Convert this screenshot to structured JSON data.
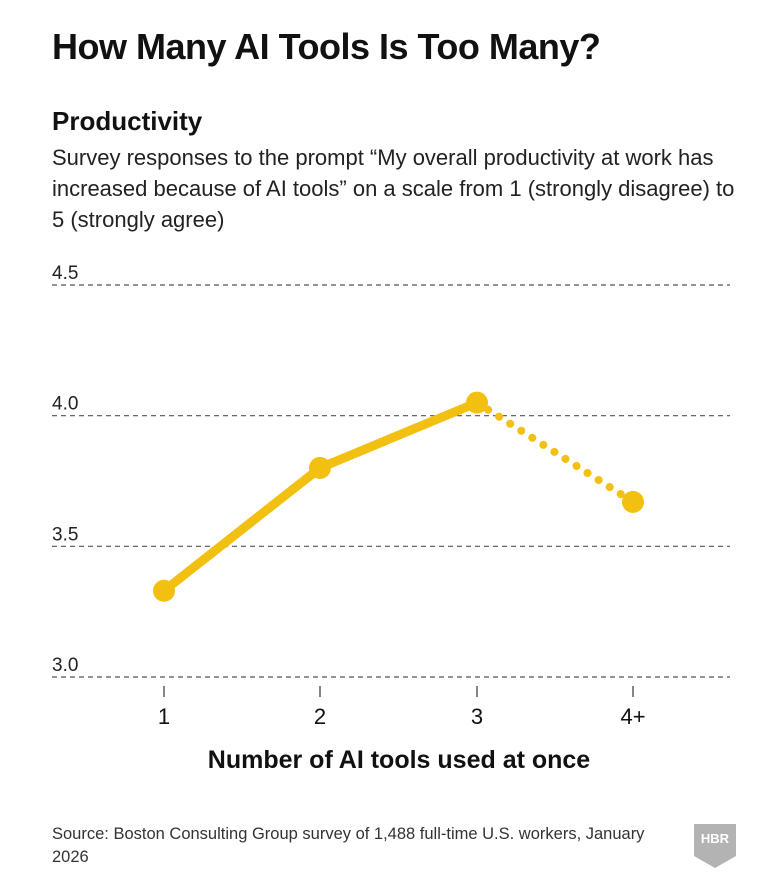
{
  "header": {
    "title": "How Many AI Tools Is Too Many?"
  },
  "chart_data": {
    "type": "line",
    "title": "Productivity",
    "subtitle": "Survey responses to the prompt “My overall productivity at work has increased because of AI tools” on a scale from 1 (strongly disagree) to 5 (strongly agree)",
    "xlabel": "Number of AI tools used at once",
    "ylabel": "",
    "categories": [
      "1",
      "2",
      "3",
      "4+"
    ],
    "series": [
      {
        "name": "Productivity",
        "values": [
          3.33,
          3.8,
          4.05,
          3.67
        ],
        "style_by_segment": [
          "solid",
          "solid",
          "dotted"
        ]
      }
    ],
    "ylim": [
      3.0,
      4.5
    ],
    "yticks": [
      "3.0",
      "3.5",
      "4.0",
      "4.5"
    ],
    "ytick_values": [
      3.0,
      3.5,
      4.0,
      4.5
    ],
    "grid": true,
    "colors": {
      "line": "#f2c010",
      "grid": "#555555"
    }
  },
  "footer": {
    "source": "Source: Boston Consulting Group survey of 1,488 full-time U.S. workers, January 2026",
    "logo_text": "HBR"
  }
}
